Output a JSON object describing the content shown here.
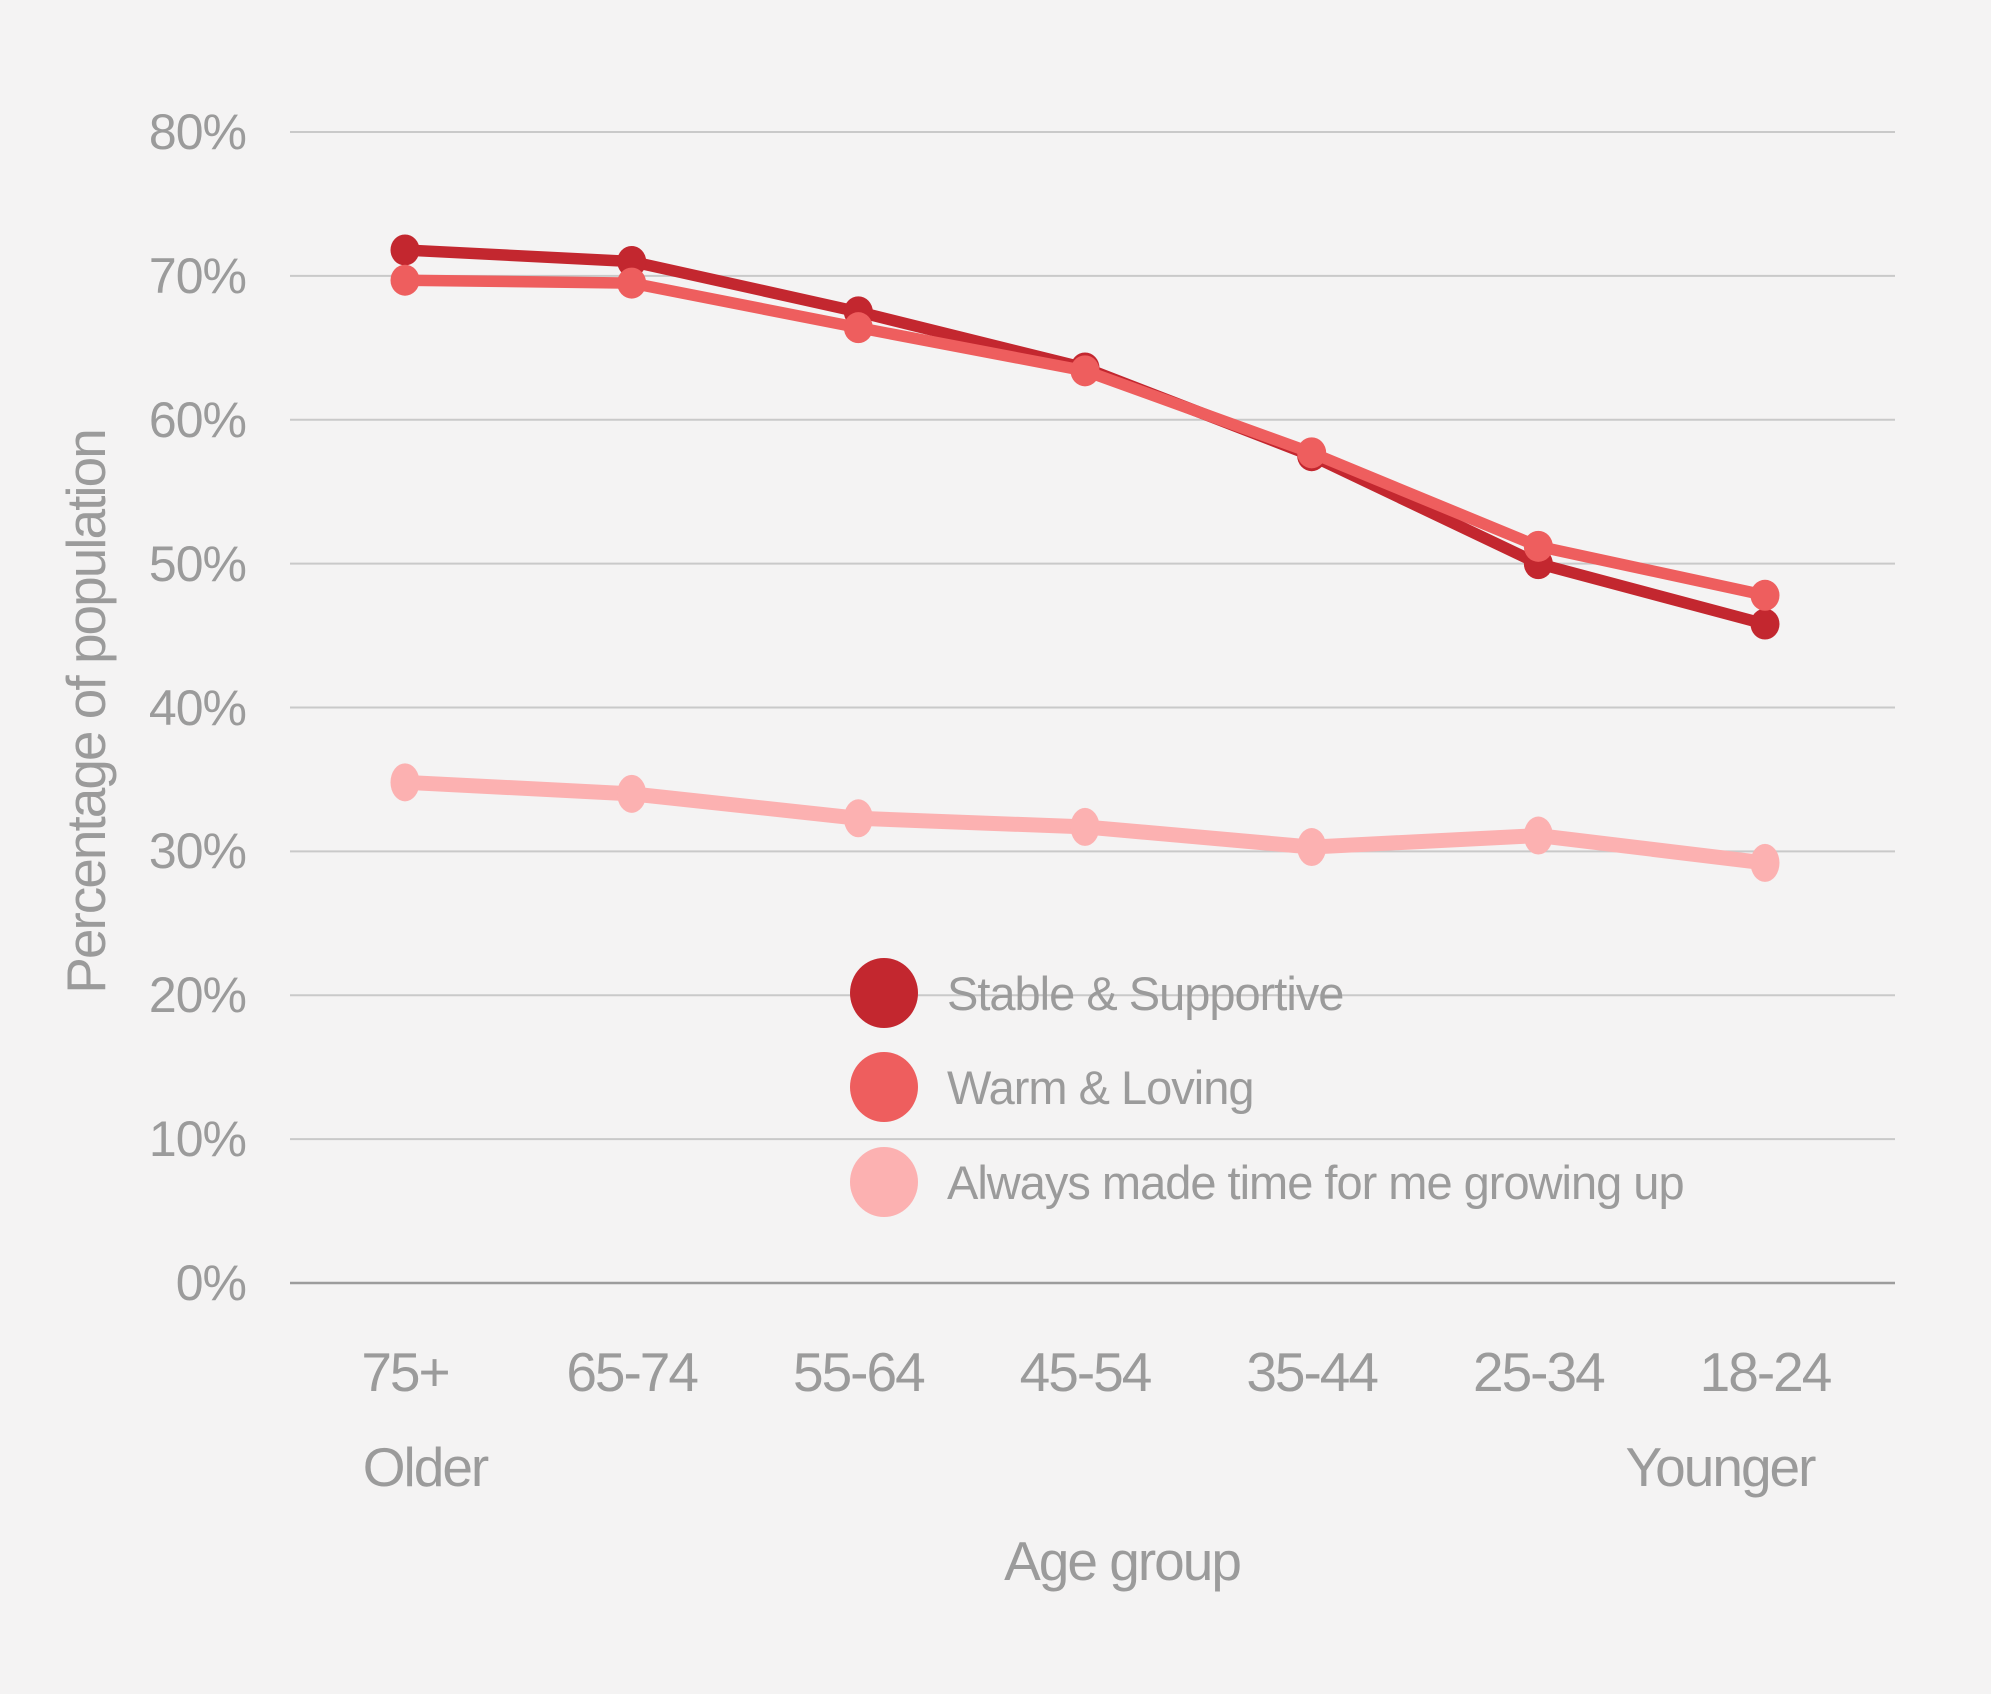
{
  "chart_data": {
    "type": "line",
    "title": "",
    "xlabel": "Age group",
    "ylabel": "Percentage of population",
    "categories": [
      "75+",
      "65-74",
      "55-64",
      "45-54",
      "35-44",
      "25-34",
      "18-24"
    ],
    "x_direction_labels": {
      "left": "Older",
      "right": "Younger"
    },
    "series": [
      {
        "name": "Stable & Supportive",
        "color": "#c3272f",
        "values": [
          71.8,
          71.0,
          67.5,
          63.6,
          57.5,
          50.0,
          45.8
        ]
      },
      {
        "name": "Warm & Loving",
        "color": "#ee5e5e",
        "values": [
          69.7,
          69.5,
          66.4,
          63.4,
          57.7,
          51.2,
          47.8
        ]
      },
      {
        "name": "Always made time for me growing up",
        "color": "#fcb1b1",
        "values": [
          34.8,
          34.0,
          32.3,
          31.7,
          30.3,
          31.1,
          29.2
        ]
      }
    ],
    "ylim": [
      0,
      80
    ],
    "ytick_step": 10,
    "ytick_labels": [
      "0%",
      "10%",
      "20%",
      "30%",
      "40%",
      "50%",
      "60%",
      "70%",
      "80%"
    ],
    "grid": "horizontal",
    "legend_position": "inside-bottom-center"
  },
  "styles": {
    "background": "#f4f3f3",
    "grid_color": "#c9c9c9",
    "axis_line_color": "#9c9c9c",
    "text_color": "#9b9b9b"
  }
}
